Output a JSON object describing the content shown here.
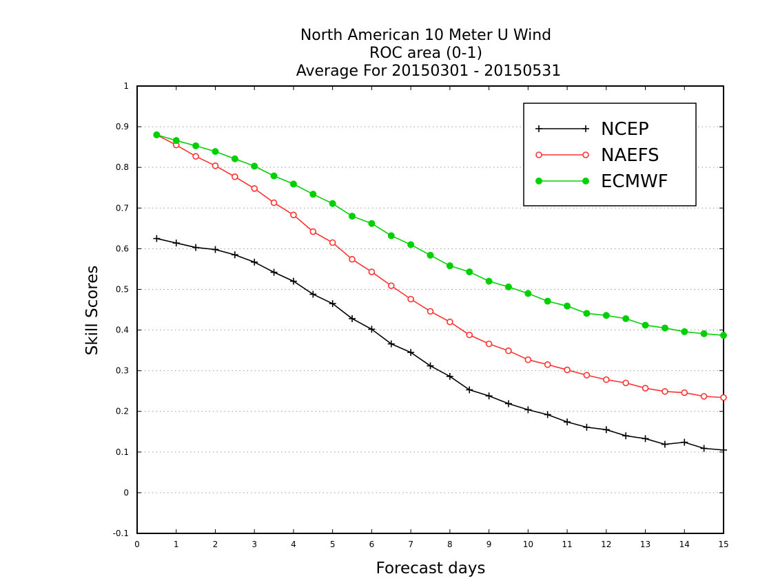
{
  "chart_data": {
    "type": "line",
    "title": [
      "North American 10 Meter U Wind",
      "ROC area (0-1)",
      "Average For 20150301 - 20150531"
    ],
    "xlabel": "Forecast days",
    "ylabel": "Skill Scores",
    "xlim": [
      0,
      15
    ],
    "ylim": [
      -0.1,
      1
    ],
    "xticks": [
      0,
      1,
      2,
      3,
      4,
      5,
      6,
      7,
      8,
      9,
      10,
      11,
      12,
      13,
      14,
      15
    ],
    "xtick_labels": [
      "0",
      "1",
      "2",
      "3",
      "4",
      "5",
      "6",
      "7",
      "8",
      "9",
      "10",
      "11",
      "12",
      "13",
      "14",
      "15"
    ],
    "yticks": [
      -0.1,
      0,
      0.1,
      0.2,
      0.3,
      0.4,
      0.5,
      0.6,
      0.7,
      0.8,
      0.9,
      1
    ],
    "ytick_labels": [
      "-0.1",
      "0",
      "0.1",
      "0.2",
      "0.3",
      "0.4",
      "0.5",
      "0.6",
      "0.7",
      "0.8",
      "0.9",
      "1"
    ],
    "grid": "horizontal dotted",
    "legend_position": "top-right",
    "x": [
      0.5,
      1.0,
      1.5,
      2.0,
      2.5,
      3.0,
      3.5,
      4.0,
      4.5,
      5.0,
      5.5,
      6.0,
      6.5,
      7.0,
      7.5,
      8.0,
      8.5,
      9.0,
      9.5,
      10.0,
      10.5,
      11.0,
      11.5,
      12.0,
      12.5,
      13.0,
      13.5,
      14.0,
      14.5,
      15.0
    ],
    "series": [
      {
        "name": "NCEP",
        "color": "#000000",
        "marker": "plus",
        "values": [
          0.625,
          0.614,
          0.603,
          0.598,
          0.585,
          0.567,
          0.542,
          0.52,
          0.488,
          0.465,
          0.428,
          0.402,
          0.366,
          0.345,
          0.312,
          0.286,
          0.253,
          0.238,
          0.219,
          0.204,
          0.192,
          0.174,
          0.161,
          0.155,
          0.14,
          0.133,
          0.119,
          0.124,
          0.109,
          0.105
        ]
      },
      {
        "name": "NAEFS",
        "color": "#ff3030",
        "marker": "open-circle",
        "values": [
          0.88,
          0.855,
          0.827,
          0.804,
          0.777,
          0.748,
          0.713,
          0.683,
          0.642,
          0.615,
          0.574,
          0.543,
          0.509,
          0.476,
          0.446,
          0.42,
          0.388,
          0.366,
          0.349,
          0.327,
          0.315,
          0.302,
          0.289,
          0.278,
          0.27,
          0.257,
          0.249,
          0.246,
          0.237,
          0.234
        ]
      },
      {
        "name": "ECMWF",
        "color": "#00d000",
        "marker": "filled-circle",
        "values": [
          0.88,
          0.866,
          0.853,
          0.839,
          0.821,
          0.803,
          0.779,
          0.759,
          0.734,
          0.711,
          0.68,
          0.662,
          0.632,
          0.61,
          0.584,
          0.558,
          0.543,
          0.52,
          0.506,
          0.49,
          0.471,
          0.459,
          0.441,
          0.436,
          0.428,
          0.412,
          0.405,
          0.396,
          0.391,
          0.387
        ]
      }
    ]
  }
}
